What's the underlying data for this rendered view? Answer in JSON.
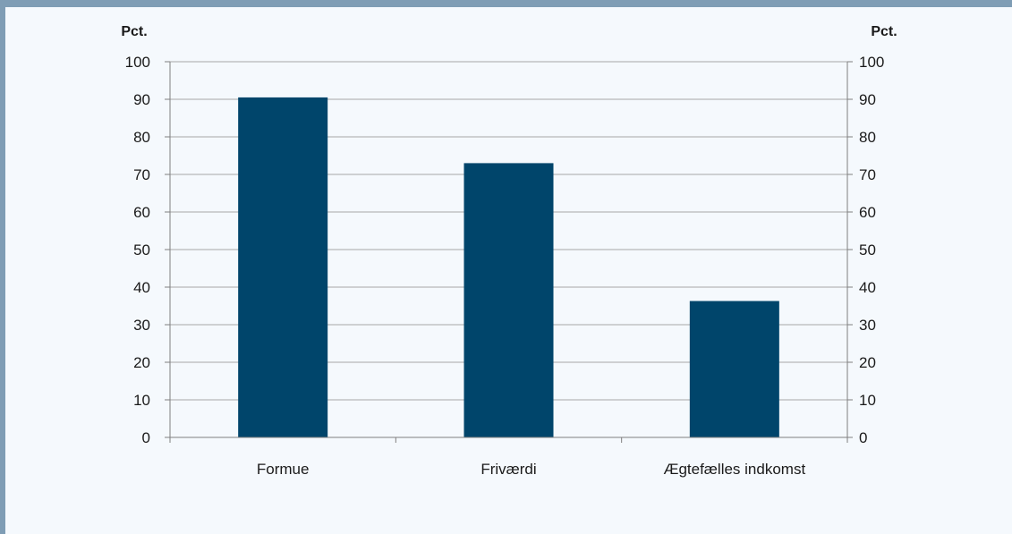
{
  "chart_data": {
    "type": "bar",
    "categories": [
      "Formue",
      "Friværdi",
      "Ægtefælles indkomst"
    ],
    "values": [
      90.5,
      73,
      36.3
    ],
    "y_unit_left": "Pct.",
    "y_unit_right": "Pct.",
    "ylim": [
      0,
      100
    ],
    "yticks": [
      0,
      10,
      20,
      30,
      40,
      50,
      60,
      70,
      80,
      90,
      100
    ],
    "grid": true,
    "secondary_y_axis": true,
    "colors": {
      "bar": "#00456b",
      "grid": "#a6a6a6",
      "axis": "#808080",
      "background": "#f5f9fd",
      "frame": "#7f9db5"
    }
  }
}
